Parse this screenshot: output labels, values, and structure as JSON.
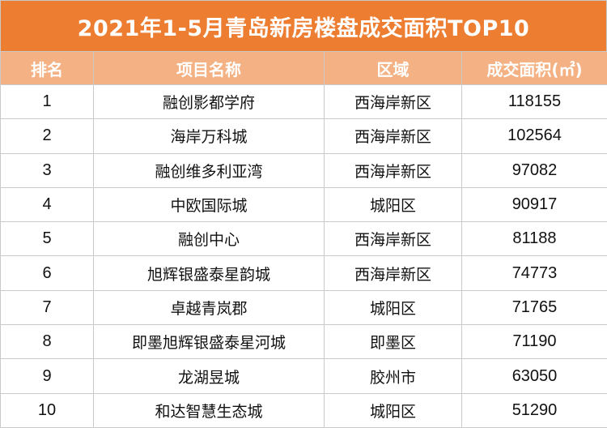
{
  "title": "2021年1-5月青岛新房楼盘成交面积TOP10",
  "colors": {
    "title_bg": "#ED7D31",
    "header_bg": "#F4B183",
    "grid": "#c9c9c9"
  },
  "table": {
    "headers": [
      "排名",
      "项目名称",
      "区域",
      "成交面积(㎡)"
    ],
    "rows": [
      [
        "1",
        "融创影都学府",
        "西海岸新区",
        "118155"
      ],
      [
        "2",
        "海岸万科城",
        "西海岸新区",
        "102564"
      ],
      [
        "3",
        "融创维多利亚湾",
        "西海岸新区",
        "97082"
      ],
      [
        "4",
        "中欧国际城",
        "城阳区",
        "90917"
      ],
      [
        "5",
        "融创中心",
        "西海岸新区",
        "81188"
      ],
      [
        "6",
        "旭辉银盛泰星韵城",
        "西海岸新区",
        "74773"
      ],
      [
        "7",
        "卓越青岚郡",
        "城阳区",
        "71765"
      ],
      [
        "8",
        "即墨旭辉银盛泰星河城",
        "即墨区",
        "71190"
      ],
      [
        "9",
        "龙湖昱城",
        "胶州市",
        "63050"
      ],
      [
        "10",
        "和达智慧生态城",
        "城阳区",
        "51290"
      ]
    ]
  }
}
